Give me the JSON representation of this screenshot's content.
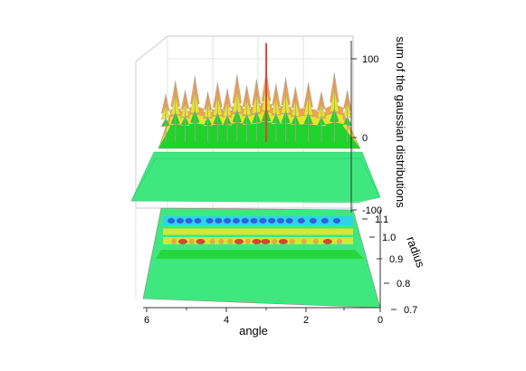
{
  "chart_data": {
    "type": "3d-surface-with-contour-projection",
    "zlabel": "sum of the gaussian distributions",
    "xlabel": "angle",
    "ylabel": "radius",
    "x_ticks": [
      "6",
      "4",
      "2",
      "0"
    ],
    "y_ticks": [
      "0.7",
      "0.8",
      "0.9",
      "1.0",
      "1.1"
    ],
    "z_ticks": [
      "-100",
      "0",
      "100"
    ],
    "xlim": [
      0,
      6.28
    ],
    "ylim": [
      0.7,
      1.1
    ],
    "zlim": [
      -100,
      120
    ],
    "grid": true,
    "colormap": [
      "#3fe87f",
      "#21d22a",
      "#e6e62b",
      "#f0a050",
      "#e04040",
      "#2ad2f0",
      "#3060e0"
    ],
    "surface_base_color": "#3fe87f",
    "contour_projection": "bottom",
    "angle_bands": [
      {
        "angle": 6.0,
        "peak": 55
      },
      {
        "angle": 5.7,
        "peak": 72
      },
      {
        "angle": 5.4,
        "peak": 60
      },
      {
        "angle": 5.1,
        "peak": 78
      },
      {
        "angle": 4.7,
        "peak": 58
      },
      {
        "angle": 4.4,
        "peak": 70
      },
      {
        "angle": 4.1,
        "peak": 62
      },
      {
        "angle": 3.8,
        "peak": 80
      },
      {
        "angle": 3.5,
        "peak": 66
      },
      {
        "angle": 3.2,
        "peak": 74
      },
      {
        "angle": 2.9,
        "peak": 120
      },
      {
        "angle": 2.6,
        "peak": 68
      },
      {
        "angle": 2.3,
        "peak": 76
      },
      {
        "angle": 2.0,
        "peak": 64
      },
      {
        "angle": 1.6,
        "peak": 70
      },
      {
        "angle": 1.2,
        "peak": 58
      },
      {
        "angle": 0.8,
        "peak": 82
      },
      {
        "angle": 0.4,
        "peak": 60
      }
    ]
  }
}
